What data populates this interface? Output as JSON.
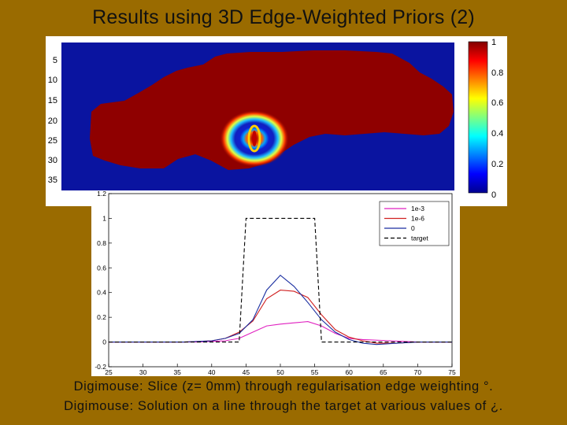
{
  "slide": {
    "title": "Results using 3D Edge-Weighted Priors (2)",
    "caption_line1": "Digimouse: Slice (z= 0mm) through regularisation edge weighting °.",
    "caption_line2": "Digimouse: Solution on a line through the target at various values of ¿."
  },
  "chart_data": [
    {
      "type": "heatmap",
      "title": "",
      "colormap": "jet",
      "clim": [
        0,
        1
      ],
      "y_tick_labels": [
        "5",
        "10",
        "15",
        "20",
        "25",
        "30",
        "35"
      ],
      "colorbar_tick_labels": [
        "1",
        "0.8",
        "0.6",
        "0.4",
        "0.2",
        "0"
      ],
      "colors": {
        "background": "#0a14a0",
        "body": "#8f0000"
      }
    },
    {
      "type": "line",
      "title": "",
      "xlabel": "",
      "ylabel": "",
      "xlim": [
        25,
        75
      ],
      "ylim": [
        -0.2,
        1.2
      ],
      "x_tick_labels": [
        "25",
        "30",
        "35",
        "40",
        "45",
        "50",
        "55",
        "60",
        "65",
        "70",
        "75"
      ],
      "y_tick_labels": [
        "-0.2",
        "0",
        "0.2",
        "0.4",
        "0.6",
        "0.8",
        "1",
        "1.2"
      ],
      "legend_position": "top-right",
      "series": [
        {
          "name": "1e-3",
          "color": "#e020c0",
          "dash": "solid",
          "x": [
            25,
            38,
            42,
            44,
            46,
            48,
            50,
            52,
            54,
            56,
            58,
            60,
            62,
            66,
            70,
            75
          ],
          "y": [
            0,
            0,
            0.01,
            0.03,
            0.08,
            0.13,
            0.145,
            0.155,
            0.165,
            0.13,
            0.07,
            0.03,
            0.02,
            0.01,
            0,
            0
          ]
        },
        {
          "name": "1e-6",
          "color": "#d02020",
          "dash": "solid",
          "x": [
            25,
            36,
            40,
            42,
            44,
            46,
            48,
            50,
            52,
            54,
            56,
            58,
            60,
            62,
            64,
            67,
            70,
            75
          ],
          "y": [
            0,
            0,
            0.01,
            0.03,
            0.08,
            0.17,
            0.35,
            0.42,
            0.41,
            0.36,
            0.22,
            0.1,
            0.04,
            0.01,
            -0.01,
            -0.01,
            0,
            0
          ]
        },
        {
          "name": "0",
          "color": "#1a2ea0",
          "dash": "solid",
          "x": [
            25,
            36,
            40,
            42,
            44,
            46,
            48,
            50,
            52,
            54,
            56,
            58,
            60,
            62,
            64,
            67,
            70,
            75
          ],
          "y": [
            0,
            0,
            0.01,
            0.03,
            0.07,
            0.18,
            0.42,
            0.54,
            0.45,
            0.32,
            0.18,
            0.08,
            0.02,
            -0.01,
            -0.02,
            -0.01,
            0,
            0
          ]
        },
        {
          "name": "target",
          "color": "#000000",
          "dash": "dashed",
          "x": [
            25,
            44,
            45,
            55,
            56,
            75
          ],
          "y": [
            0,
            0,
            1,
            1,
            0,
            0
          ]
        }
      ]
    }
  ]
}
